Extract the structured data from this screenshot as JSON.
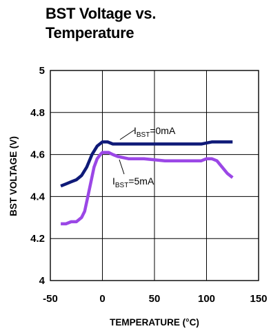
{
  "page": {
    "title_line1": "BST Voltage vs.",
    "title_line2": "Temperature"
  },
  "chart_data": {
    "type": "line",
    "title": "BST Voltage vs. Temperature",
    "xlabel": "TEMPERATURE (°C)",
    "ylabel": "BST VOLTAGE (V)",
    "xlim": [
      -50,
      150
    ],
    "ylim": [
      4,
      5
    ],
    "x_ticks": [
      -50,
      0,
      50,
      100,
      150
    ],
    "y_ticks": [
      4,
      4.2,
      4.4,
      4.6,
      4.8,
      5
    ],
    "x_tick_labels": [
      "-50",
      "0",
      "50",
      "100",
      "150"
    ],
    "y_tick_labels": [
      "4",
      "4.2",
      "4.4",
      "4.6",
      "4.8",
      "5"
    ],
    "grid": true,
    "series": [
      {
        "name": "IBST=0mA",
        "label_main": "I",
        "label_sub": "BST",
        "label_tail": "=0mA",
        "color": "#0f1a78",
        "x": [
          -40,
          -35,
          -30,
          -25,
          -20,
          -15,
          -10,
          -5,
          0,
          5,
          10,
          20,
          40,
          60,
          80,
          95,
          105,
          115,
          125
        ],
        "y": [
          4.45,
          4.46,
          4.47,
          4.48,
          4.5,
          4.54,
          4.6,
          4.64,
          4.66,
          4.66,
          4.65,
          4.65,
          4.65,
          4.65,
          4.65,
          4.65,
          4.66,
          4.66,
          4.66
        ]
      },
      {
        "name": "IBST=5mA",
        "label_main": "I",
        "label_sub": "BST",
        "label_tail": "=5mA",
        "color": "#9b47e6",
        "x": [
          -40,
          -35,
          -30,
          -25,
          -20,
          -17,
          -14,
          -11,
          -8,
          -5,
          -2,
          0,
          3,
          6,
          10,
          15,
          25,
          40,
          60,
          80,
          95,
          100,
          105,
          110,
          115,
          120,
          125
        ],
        "y": [
          4.27,
          4.27,
          4.28,
          4.28,
          4.3,
          4.33,
          4.4,
          4.47,
          4.54,
          4.58,
          4.6,
          4.61,
          4.61,
          4.61,
          4.6,
          4.59,
          4.58,
          4.58,
          4.57,
          4.57,
          4.57,
          4.58,
          4.58,
          4.57,
          4.54,
          4.51,
          4.49
        ]
      }
    ]
  }
}
